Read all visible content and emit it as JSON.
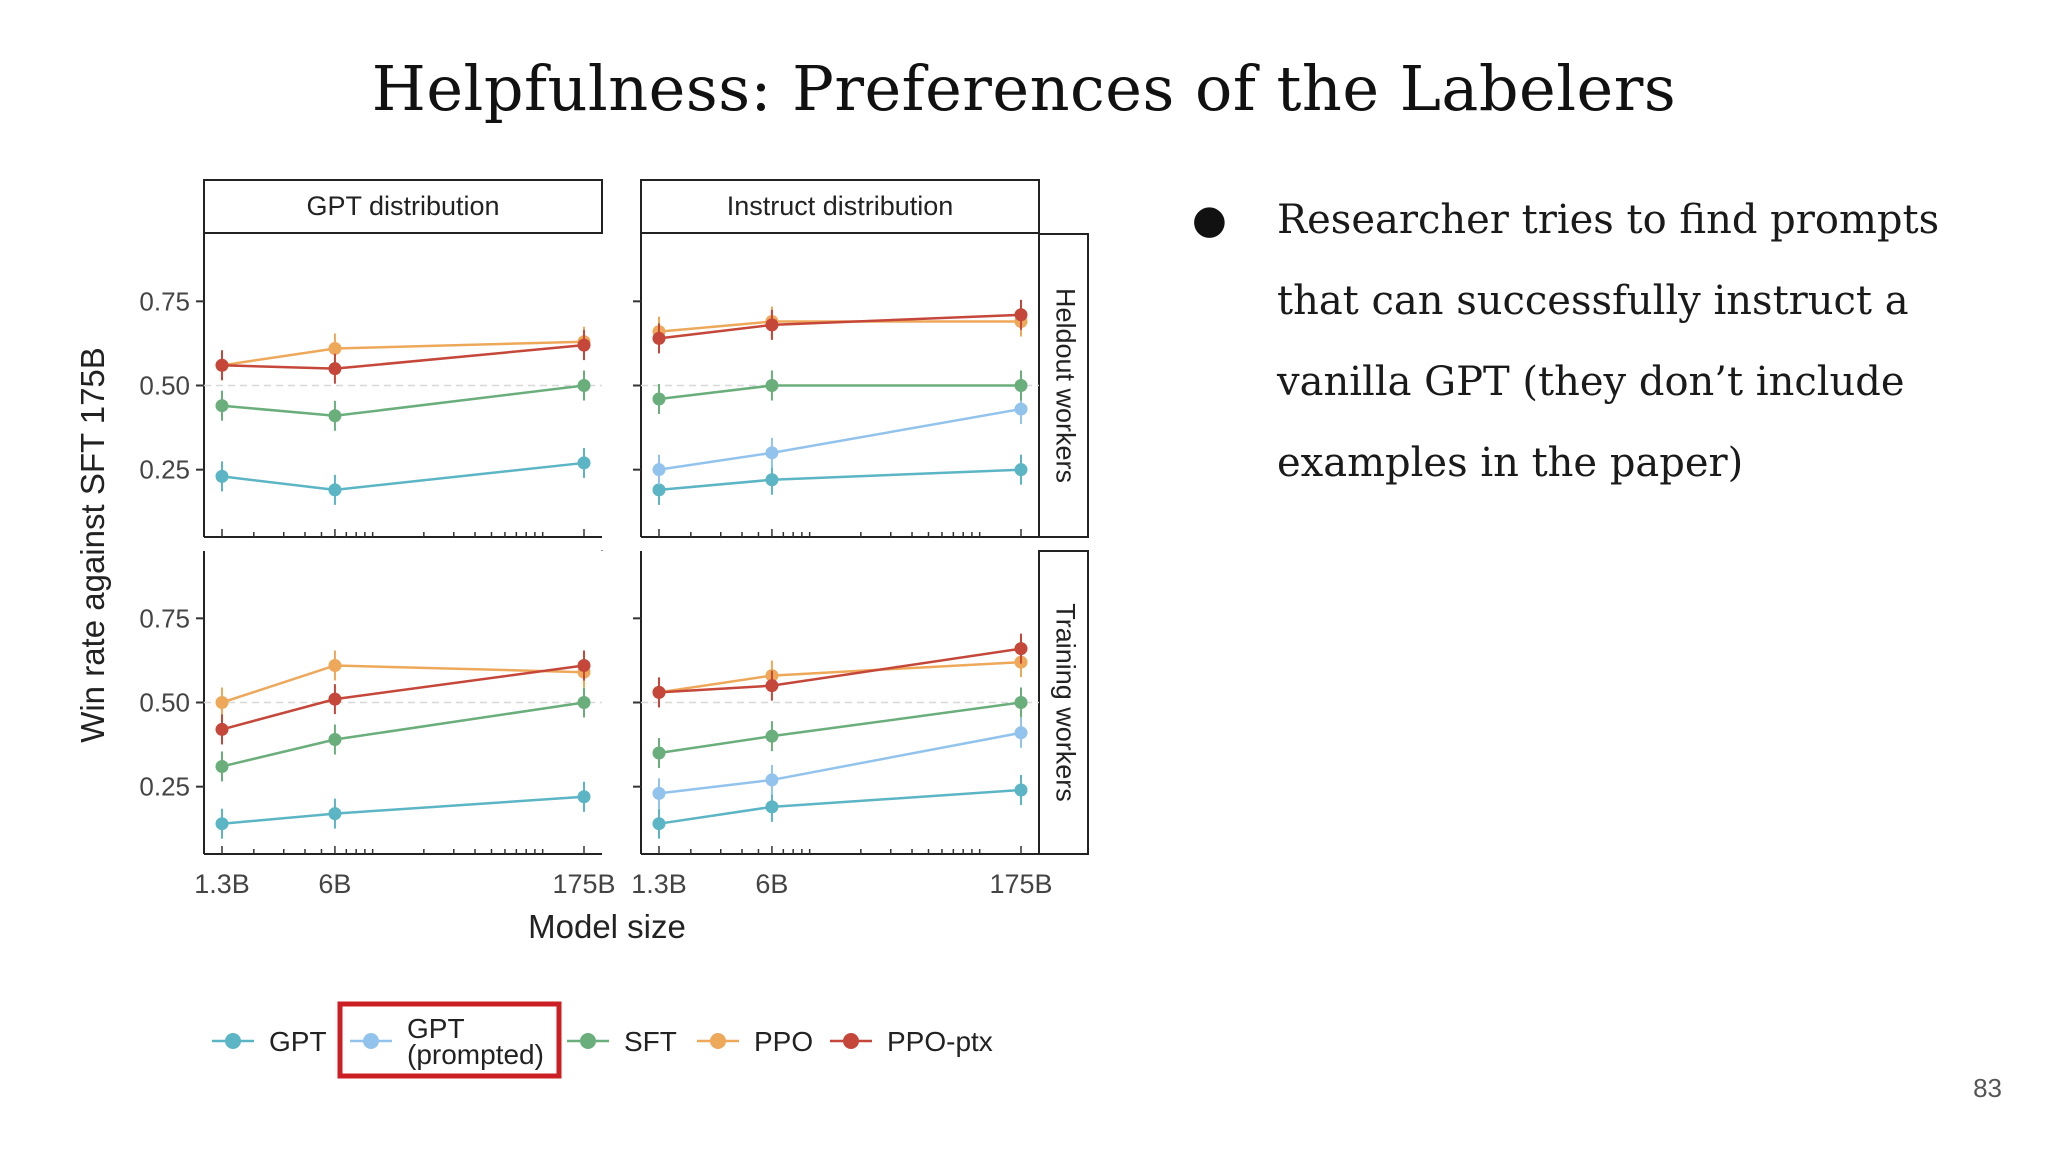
{
  "slide": {
    "title": "Helpfulness: Preferences of the Labelers",
    "bullet": "Researcher tries to find prompts that can successfully instruct a vanilla GPT (they don’t include examples in the paper)",
    "bullet_marker": "●",
    "page_number": "83"
  },
  "colors": {
    "GPT": "#5bb5c4",
    "GPT (prompted)": "#92c3ec",
    "SFT": "#6aae7c",
    "PPO": "#eda85a",
    "PPO-ptx": "#c5473a",
    "highlight_box": "#cc1f24"
  },
  "chart_data": {
    "type": "line",
    "ylabel": "Win rate against SFT 175B",
    "xlabel": "Model size",
    "x_scale": "log",
    "categories": [
      "1.3B",
      "6B",
      "175B"
    ],
    "ylim": [
      0.05,
      0.95
    ],
    "yticks": [
      "0.25",
      "0.50",
      "0.75"
    ],
    "reference_line": 0.5,
    "column_titles": [
      "GPT distribution",
      "Instruct distribution"
    ],
    "row_titles": [
      "Heldout workers",
      "Training workers"
    ],
    "legend": {
      "placement": "bottom",
      "entries": [
        "GPT",
        "GPT (prompted)",
        "SFT",
        "PPO",
        "PPO-ptx"
      ],
      "highlighted": "GPT (prompted)",
      "prompted_line1": "GPT",
      "prompted_line2": "(prompted)"
    },
    "panels": [
      {
        "column": "GPT distribution",
        "row": "Heldout workers",
        "series": [
          {
            "name": "GPT",
            "values": [
              0.23,
              0.19,
              0.27
            ]
          },
          {
            "name": "SFT",
            "values": [
              0.44,
              0.41,
              0.5
            ]
          },
          {
            "name": "PPO",
            "values": [
              0.56,
              0.61,
              0.63
            ]
          },
          {
            "name": "PPO-ptx",
            "values": [
              0.56,
              0.55,
              0.62
            ]
          }
        ]
      },
      {
        "column": "Instruct distribution",
        "row": "Heldout workers",
        "series": [
          {
            "name": "GPT",
            "values": [
              0.19,
              0.22,
              0.25
            ]
          },
          {
            "name": "GPT (prompted)",
            "values": [
              0.25,
              0.3,
              0.43
            ]
          },
          {
            "name": "SFT",
            "values": [
              0.46,
              0.5,
              0.5
            ]
          },
          {
            "name": "PPO",
            "values": [
              0.66,
              0.69,
              0.69
            ]
          },
          {
            "name": "PPO-ptx",
            "values": [
              0.64,
              0.68,
              0.71
            ]
          }
        ]
      },
      {
        "column": "GPT distribution",
        "row": "Training workers",
        "series": [
          {
            "name": "GPT",
            "values": [
              0.14,
              0.17,
              0.22
            ]
          },
          {
            "name": "SFT",
            "values": [
              0.31,
              0.39,
              0.5
            ]
          },
          {
            "name": "PPO",
            "values": [
              0.5,
              0.61,
              0.59
            ]
          },
          {
            "name": "PPO-ptx",
            "values": [
              0.42,
              0.51,
              0.61
            ]
          }
        ]
      },
      {
        "column": "Instruct distribution",
        "row": "Training workers",
        "series": [
          {
            "name": "GPT",
            "values": [
              0.14,
              0.19,
              0.24
            ]
          },
          {
            "name": "GPT (prompted)",
            "values": [
              0.23,
              0.27,
              0.41
            ]
          },
          {
            "name": "SFT",
            "values": [
              0.35,
              0.4,
              0.5
            ]
          },
          {
            "name": "PPO",
            "values": [
              0.53,
              0.58,
              0.62
            ]
          },
          {
            "name": "PPO-ptx",
            "values": [
              0.53,
              0.55,
              0.66
            ]
          }
        ]
      }
    ]
  }
}
